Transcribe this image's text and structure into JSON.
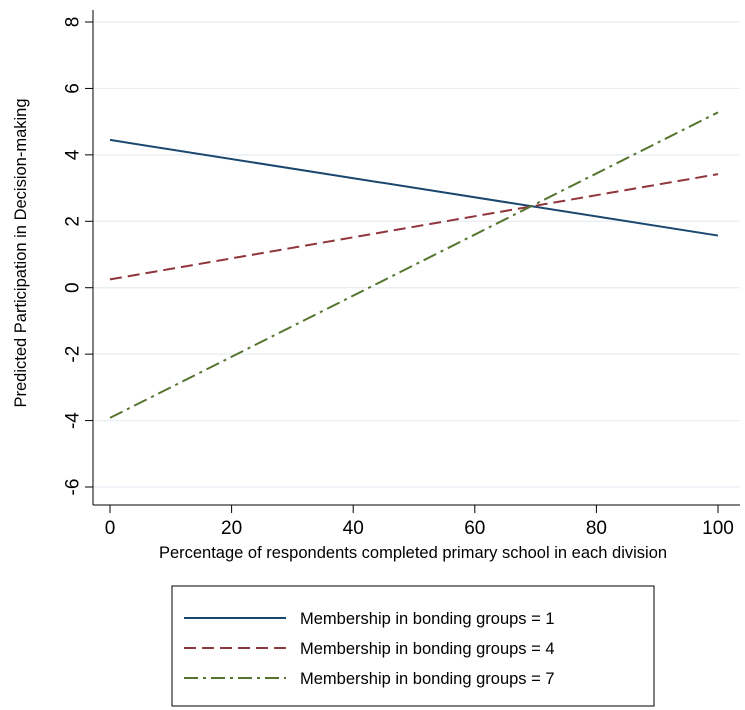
{
  "chart_data": {
    "type": "line",
    "xlabel": "Percentage of respondents completed primary school in each division",
    "ylabel": "Predicted Participation in Decision-making",
    "xlim": [
      0,
      100
    ],
    "ylim": [
      -6,
      8
    ],
    "xticks": [
      0,
      20,
      40,
      60,
      80,
      100
    ],
    "yticks": [
      -6,
      -4,
      -2,
      0,
      2,
      4,
      6,
      8
    ],
    "xtick_labels": [
      "0",
      "20",
      "40",
      "60",
      "80",
      "100"
    ],
    "ytick_labels": [
      "-6",
      "-4",
      "-2",
      "0",
      "2",
      "4",
      "6",
      "8"
    ],
    "grid": "horizontal",
    "legend_position": "bottom",
    "series": [
      {
        "name": "Membership in bonding groups = 1",
        "x": [
          0,
          100
        ],
        "y": [
          4.45,
          1.57
        ],
        "color": "#1a476f",
        "dash": "solid"
      },
      {
        "name": "Membership in bonding groups = 4",
        "x": [
          0,
          100
        ],
        "y": [
          0.25,
          3.42
        ],
        "color": "#90353b",
        "dash": "dashed"
      },
      {
        "name": "Membership in bonding groups = 7",
        "x": [
          0,
          100
        ],
        "y": [
          -3.92,
          5.28
        ],
        "color": "#55752f",
        "dash": "dashdot"
      }
    ]
  }
}
